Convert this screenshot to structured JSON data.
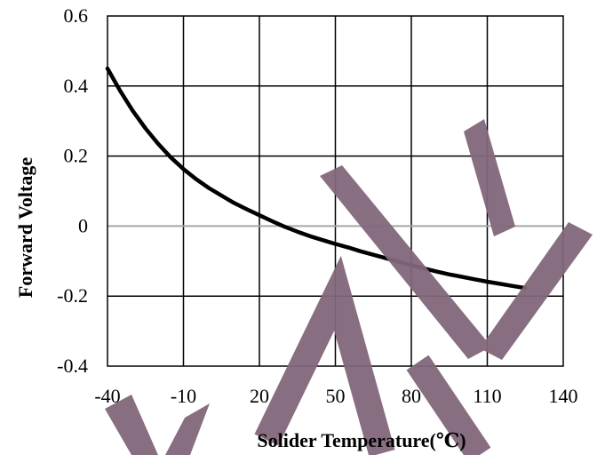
{
  "chart_data": {
    "type": "line",
    "title": "",
    "xlabel": "Solider Temperature(℃)",
    "ylabel": "Forward Voltage",
    "xlim": [
      -40,
      140
    ],
    "ylim": [
      -0.4,
      0.6
    ],
    "x_ticks": [
      -40,
      -10,
      20,
      50,
      80,
      110,
      140
    ],
    "x_tick_labels": [
      "-40",
      "-10",
      "20",
      "50",
      "80",
      "110",
      "140"
    ],
    "y_ticks": [
      0.6,
      0.4,
      0.2,
      0,
      -0.2,
      -0.4
    ],
    "y_tick_labels": [
      "0.6",
      "0.4",
      "0.2",
      "0",
      "-0.2",
      "-0.4"
    ],
    "grid": true,
    "legend": "none",
    "series": [
      {
        "color": "#000000",
        "x": [
          -40,
          -35,
          -30,
          -25,
          -20,
          -15,
          -10,
          -5,
          0,
          5,
          10,
          15,
          20,
          25,
          30,
          35,
          40,
          45,
          50,
          55,
          60,
          65,
          70,
          75,
          80,
          85,
          90,
          95,
          100,
          105,
          110,
          115,
          120,
          125
        ],
        "y": [
          0.45,
          0.386,
          0.329,
          0.279,
          0.235,
          0.196,
          0.163,
          0.134,
          0.109,
          0.087,
          0.066,
          0.048,
          0.031,
          0.014,
          -0.002,
          -0.016,
          -0.029,
          -0.04,
          -0.051,
          -0.061,
          -0.072,
          -0.082,
          -0.092,
          -0.102,
          -0.112,
          -0.121,
          -0.13,
          -0.138,
          -0.145,
          -0.152,
          -0.159,
          -0.165,
          -0.171,
          -0.177
        ]
      }
    ]
  },
  "colors": {
    "grid": "#000000",
    "zero_line": "#a6a6a6",
    "curve": "#000000",
    "watermark": "#82677b"
  }
}
